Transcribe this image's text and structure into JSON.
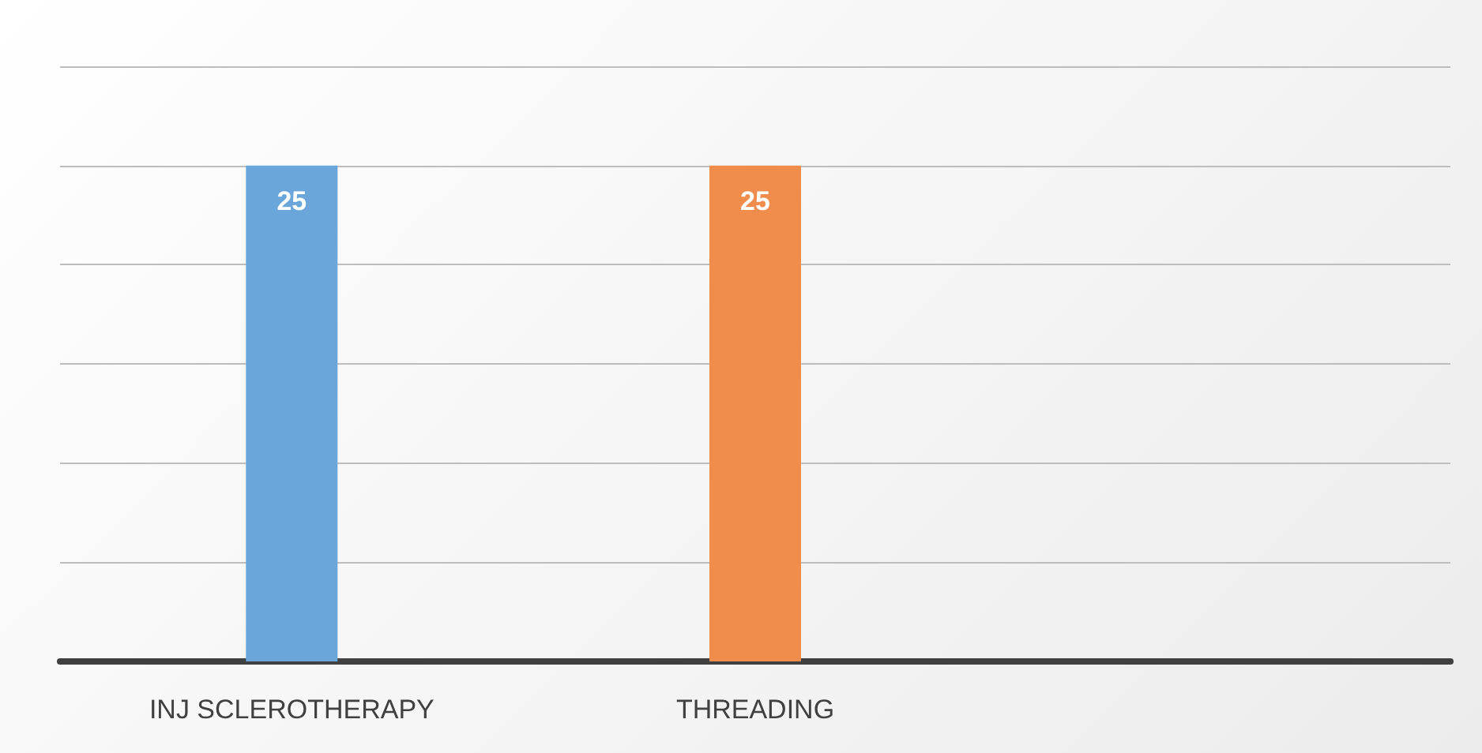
{
  "chart_data": {
    "type": "bar",
    "categories": [
      "INJ SCLEROTHERAPY",
      "THREADING",
      null
    ],
    "values": [
      25,
      25,
      null
    ],
    "colors": [
      "#6ba6db",
      "#f08d4c",
      null
    ],
    "ylim": [
      0,
      30
    ],
    "yticks": [
      0,
      5,
      10,
      15,
      20,
      25,
      30
    ],
    "grid": "y",
    "tick_labels": "x",
    "data_labels": true
  }
}
